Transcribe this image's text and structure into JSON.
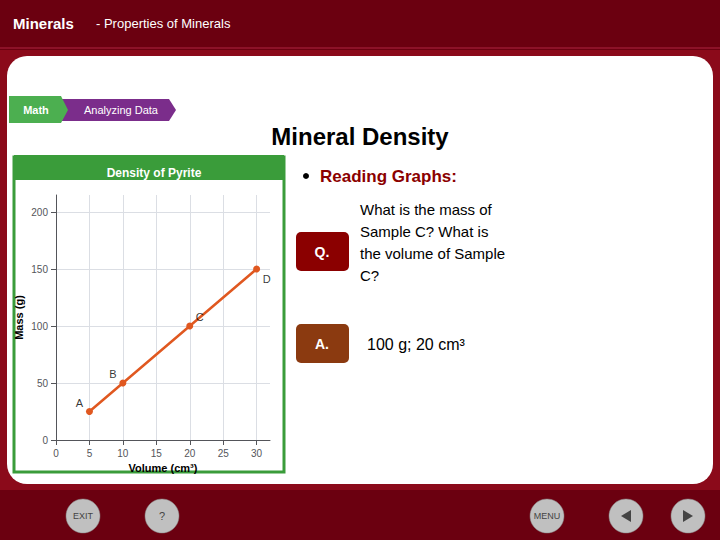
{
  "chart_data": {
    "type": "line",
    "title": "Density of Pyrite",
    "x_label": "Volume (cm³)",
    "y_label": "Mass (g)",
    "x": [
      5,
      10,
      20,
      30
    ],
    "values": [
      25,
      50,
      100,
      150
    ],
    "color": "#e05820",
    "marker": "circle",
    "xlim": [
      0,
      32
    ],
    "ylim": [
      0,
      215
    ],
    "xticks": [
      0,
      5,
      10,
      15,
      20,
      25,
      30
    ],
    "yticks": [
      0,
      50,
      100,
      150,
      200
    ],
    "grid": true,
    "annotations": [
      {
        "text": "A",
        "x": 5,
        "y": 25
      },
      {
        "text": "B",
        "x": 10,
        "y": 50
      },
      {
        "text": "C",
        "x": 20,
        "y": 100
      },
      {
        "text": "D",
        "x": 30,
        "y": 150
      },
      {
        "text": "Minerals"
      },
      {
        "text": "- Properties of Minerals"
      },
      {
        "text": "Math"
      },
      {
        "text": "Analyzing Data"
      },
      {
        "text": "Mineral Density"
      },
      {
        "text": "Reading Graphs:"
      },
      {
        "text": "Q."
      },
      {
        "text": "What is the mass of"
      },
      {
        "text": "Sample C? What is"
      },
      {
        "text": "the volume of Sample"
      },
      {
        "text": "C?"
      },
      {
        "text": "A."
      },
      {
        "text": "100 g; 20 cm³"
      },
      {
        "text": "EXIT"
      },
      {
        "text": "?"
      },
      {
        "text": "MENU"
      }
    ]
  }
}
